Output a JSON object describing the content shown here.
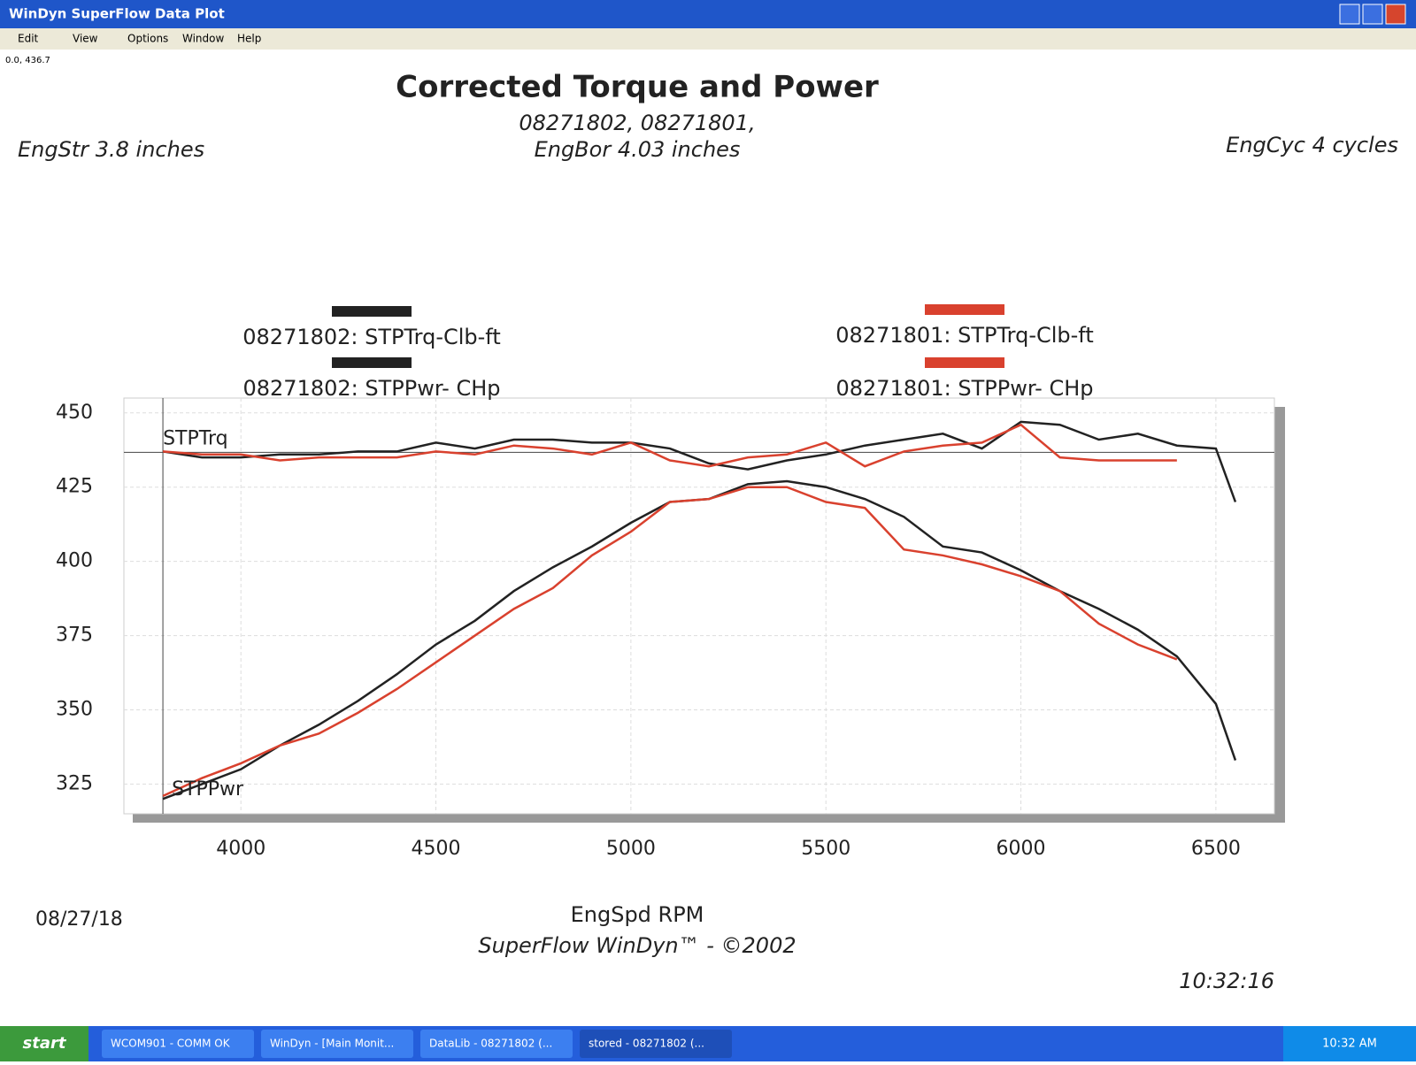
{
  "window": {
    "title": "WinDyn SuperFlow Data Plot",
    "menu": [
      "Edit",
      "View",
      "Options",
      "Window",
      "Help"
    ],
    "status": "0.0, 436.7"
  },
  "taskbar": {
    "start": "start",
    "items": [
      "WCOM901 - COMM OK",
      "WinDyn - [Main Monit...",
      "DataLib - 08271802 (...",
      "stored - 08271802 (..."
    ],
    "clock": "10:32 AM"
  },
  "chart_data": {
    "type": "line",
    "title": "Corrected Torque and Power",
    "subtitle": [
      "08271802, 08271801,",
      "EngBor 4.03 inches"
    ],
    "left_note": "EngStr 3.8 inches",
    "right_note": "EngCyc 4 cycles",
    "x_label": "EngSpd  RPM",
    "footer": "SuperFlow WinDyn™ - ©2002",
    "date": "08/27/18",
    "time": "10:32:16",
    "annotations": [
      "STPTrq",
      "STPPwr"
    ],
    "crosshair": {
      "x": 3800,
      "y": 436.7
    },
    "x": [
      3800,
      3900,
      4000,
      4100,
      4200,
      4300,
      4400,
      4500,
      4600,
      4700,
      4800,
      4900,
      5000,
      5100,
      5200,
      5300,
      5400,
      5500,
      5600,
      5700,
      5800,
      5900,
      6000,
      6100,
      6200,
      6300,
      6400,
      6500,
      6550
    ],
    "series": [
      {
        "name": "08271802: STPTrq-Clb-ft",
        "color": "#222222",
        "values": [
          437,
          435,
          435,
          436,
          436,
          437,
          437,
          440,
          438,
          441,
          441,
          440,
          440,
          438,
          433,
          431,
          434,
          436,
          439,
          441,
          443,
          438,
          447,
          446,
          441,
          443,
          439,
          438,
          420
        ]
      },
      {
        "name": "08271802: STPPwr- CHp",
        "color": "#222222",
        "values": [
          320,
          325,
          330,
          338,
          345,
          353,
          362,
          372,
          380,
          390,
          398,
          405,
          413,
          420,
          421,
          426,
          427,
          425,
          421,
          415,
          405,
          403,
          397,
          390,
          384,
          377,
          368,
          352,
          333
        ]
      },
      {
        "name": "08271801: STPTrq-Clb-ft",
        "color": "#d9412e",
        "values": [
          437,
          436,
          436,
          434,
          435,
          435,
          435,
          437,
          436,
          439,
          438,
          436,
          440,
          434,
          432,
          435,
          436,
          440,
          432,
          437,
          439,
          440,
          446,
          435,
          434,
          434,
          434,
          null,
          null
        ]
      },
      {
        "name": "08271801: STPPwr- CHp",
        "color": "#d9412e",
        "values": [
          321,
          327,
          332,
          338,
          342,
          349,
          357,
          366,
          375,
          384,
          391,
          402,
          410,
          420,
          421,
          425,
          425,
          420,
          418,
          404,
          402,
          399,
          395,
          390,
          379,
          372,
          367,
          null,
          null
        ]
      }
    ],
    "xlim": [
      3700,
      6650
    ],
    "ylim": [
      315,
      455
    ],
    "xticks": [
      4000,
      4500,
      5000,
      5500,
      6000,
      6500
    ],
    "yticks": [
      325,
      350,
      375,
      400,
      425,
      450
    ],
    "grid": true
  }
}
